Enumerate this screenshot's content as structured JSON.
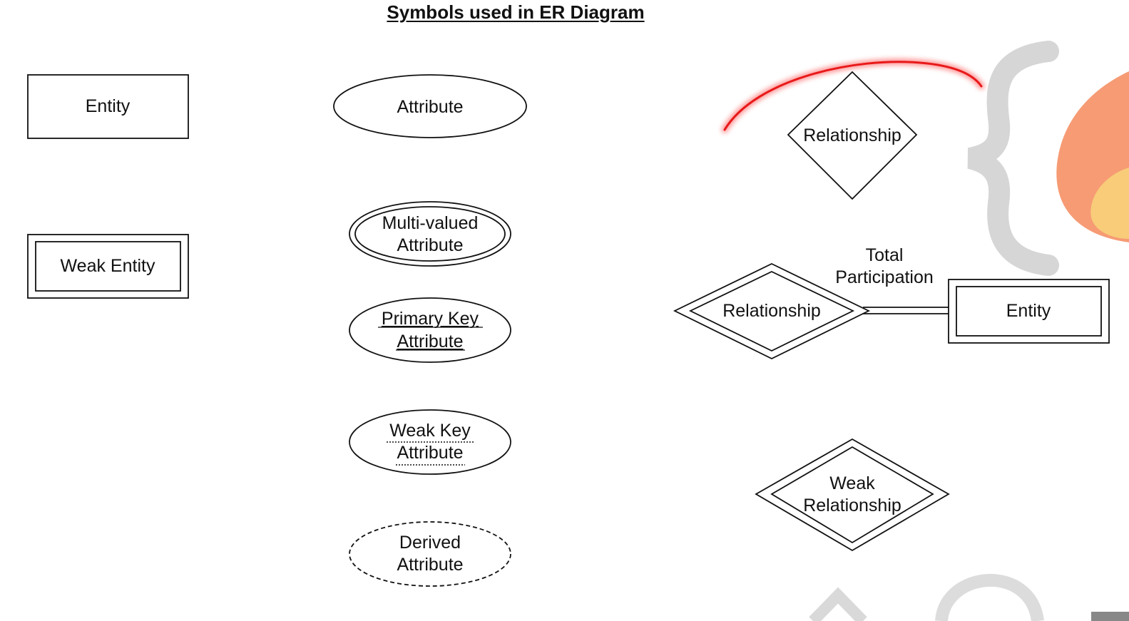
{
  "title": "Symbols used in ER Diagram",
  "symbols": {
    "entity": "Entity",
    "weak_entity": "Weak Entity",
    "attribute": "Attribute",
    "multivalued_attribute": [
      "Multi-valued",
      "Attribute"
    ],
    "primary_key_attribute": [
      "Primary Key",
      "Attribute"
    ],
    "weak_key_attribute": [
      "Weak Key",
      "Attribute"
    ],
    "derived_attribute": [
      "Derived",
      "Attribute"
    ],
    "relationship": "Relationship",
    "identifying_relationship": "Relationship",
    "total_participation": [
      "Total",
      "Participation"
    ],
    "participating_entity": "Entity",
    "weak_relationship": [
      "Weak",
      "Relationship"
    ]
  },
  "colors": {
    "stroke": "#111111",
    "highlight": "#e8191a",
    "watermark_gray": "#c8c8c8",
    "watermark_orange": "#f26b3a",
    "watermark_yellow": "#f7c95a"
  }
}
